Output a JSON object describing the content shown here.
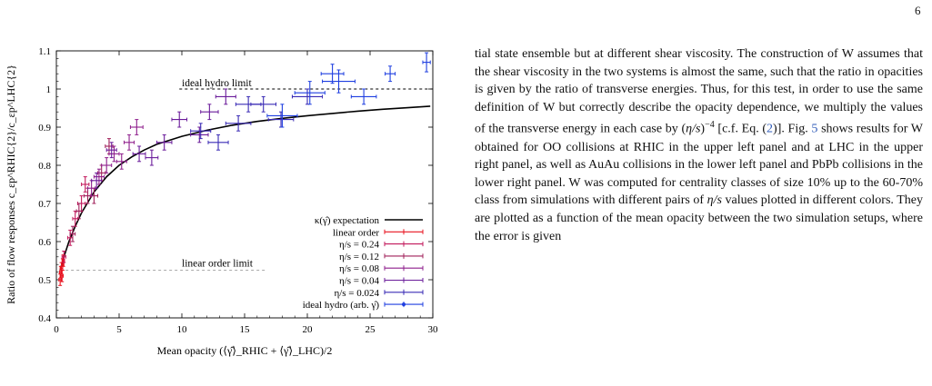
{
  "page_number": "6",
  "body_text": "tial state ensemble but at different shear viscosity. The construction of W assumes that the shear viscosity in the two systems is almost the same, such that the ratio in opacities is given by the ratio of transverse energies. Thus, for this test, in order to use the same definition of W but correctly describe the opacity dependence, we multiply the values of the transverse energy in each case by (η/s)^−4 [c.f. Eq. (2)]. Fig. 5 shows results for W obtained for OO collisions at RHIC in the upper left panel and at LHC in the upper right panel, as well as AuAu collisions in the lower left panel and PbPb collisions in the lower right panel. W was computed for centrality classes of size 10% up to the 60-70% class from simulations with different pairs of η/s values plotted in different colors. They are plotted as a function of the mean opacity between the two simulation setups, where the error is given",
  "colors": {
    "link": "#2f5bb8"
  },
  "chart_data": {
    "type": "scatter",
    "xlabel": "Mean opacity (⟨γ̂⟩_RHIC + ⟨γ̂⟩_LHC)/2",
    "ylabel": "Ratio of flow responses c_εp^RHIC{2}/c_εp^LHC{2}",
    "xlim": [
      0,
      30
    ],
    "ylim": [
      0.4,
      1.1
    ],
    "x_ticks": [
      "0",
      "5",
      "10",
      "15",
      "20",
      "25",
      "30"
    ],
    "y_ticks": [
      "0.4",
      "0.5",
      "0.6",
      "0.7",
      "0.8",
      "0.9",
      "1",
      "1.1"
    ],
    "annotations": {
      "ideal_hydro_limit": {
        "text": "ideal hydro limit",
        "y": 1.0
      },
      "linear_order_limit": {
        "text": "linear order limit",
        "y": 0.525
      }
    },
    "legend_position": "bottom-right",
    "curve": {
      "name": "κ(γ̂) expectation",
      "color": "#000000",
      "points": [
        [
          0.3,
          0.525
        ],
        [
          0.6,
          0.56
        ],
        [
          1,
          0.6
        ],
        [
          1.5,
          0.64
        ],
        [
          2,
          0.675
        ],
        [
          3,
          0.73
        ],
        [
          4,
          0.77
        ],
        [
          5,
          0.8
        ],
        [
          6,
          0.822
        ],
        [
          7,
          0.84
        ],
        [
          8,
          0.855
        ],
        [
          10,
          0.876
        ],
        [
          12,
          0.892
        ],
        [
          14,
          0.905
        ],
        [
          16,
          0.915
        ],
        [
          18,
          0.923
        ],
        [
          20,
          0.93
        ],
        [
          22,
          0.936
        ],
        [
          24,
          0.942
        ],
        [
          26,
          0.947
        ],
        [
          28,
          0.951
        ],
        [
          29.8,
          0.955
        ]
      ]
    },
    "series": [
      {
        "name": "linear order",
        "color": "#e8121f",
        "points": [
          [
            0.3,
            0.5,
            0.1,
            0.015
          ],
          [
            0.35,
            0.52,
            0.1,
            0.015
          ],
          [
            0.4,
            0.53,
            0.1,
            0.015
          ],
          [
            0.45,
            0.51,
            0.1,
            0.015
          ],
          [
            0.5,
            0.54,
            0.1,
            0.015
          ],
          [
            0.55,
            0.55,
            0.1,
            0.015
          ]
        ]
      },
      {
        "name": "η/s = 0.24",
        "color": "#c2185b",
        "points": [
          [
            0.6,
            0.56,
            0.15,
            0.015
          ],
          [
            1.1,
            0.61,
            0.2,
            0.02
          ],
          [
            1.5,
            0.66,
            0.2,
            0.02
          ],
          [
            2.0,
            0.7,
            0.3,
            0.02
          ],
          [
            2.3,
            0.75,
            0.3,
            0.02
          ]
        ]
      },
      {
        "name": "η/s = 0.12",
        "color": "#a0205a",
        "points": [
          [
            1.3,
            0.62,
            0.2,
            0.02
          ],
          [
            1.8,
            0.68,
            0.2,
            0.02
          ],
          [
            2.5,
            0.72,
            0.3,
            0.02
          ],
          [
            3.0,
            0.72,
            0.3,
            0.02
          ],
          [
            3.6,
            0.78,
            0.3,
            0.02
          ],
          [
            4.2,
            0.85,
            0.3,
            0.02
          ]
        ]
      },
      {
        "name": "η/s = 0.08",
        "color": "#8e1e8c",
        "points": [
          [
            2.8,
            0.74,
            0.3,
            0.02
          ],
          [
            3.4,
            0.77,
            0.4,
            0.02
          ],
          [
            4.0,
            0.8,
            0.4,
            0.02
          ],
          [
            4.6,
            0.83,
            0.4,
            0.02
          ],
          [
            5.2,
            0.81,
            0.4,
            0.02
          ],
          [
            5.8,
            0.86,
            0.4,
            0.02
          ],
          [
            6.4,
            0.9,
            0.5,
            0.02
          ]
        ]
      },
      {
        "name": "η/s = 0.04",
        "color": "#6a1b9a",
        "points": [
          [
            3.2,
            0.76,
            0.4,
            0.02
          ],
          [
            4.4,
            0.84,
            0.4,
            0.02
          ],
          [
            6.6,
            0.83,
            0.5,
            0.02
          ],
          [
            7.6,
            0.82,
            0.5,
            0.02
          ],
          [
            8.6,
            0.86,
            0.6,
            0.02
          ],
          [
            9.8,
            0.92,
            0.6,
            0.02
          ],
          [
            11.4,
            0.88,
            0.7,
            0.02
          ],
          [
            12.2,
            0.94,
            0.7,
            0.02
          ],
          [
            13.5,
            0.98,
            0.8,
            0.02
          ]
        ]
      },
      {
        "name": "η/s = 0.024",
        "color": "#3a2bb5",
        "points": [
          [
            11.5,
            0.89,
            0.8,
            0.02
          ],
          [
            12.9,
            0.86,
            0.8,
            0.02
          ],
          [
            14.5,
            0.91,
            1.0,
            0.02
          ],
          [
            15.3,
            0.96,
            1.0,
            0.02
          ],
          [
            16.5,
            0.96,
            1.0,
            0.02
          ],
          [
            17.9,
            0.92,
            1.0,
            0.02
          ],
          [
            20.0,
            0.98,
            1.2,
            0.02
          ]
        ]
      },
      {
        "name": "ideal hydro (arb. γ̂)",
        "color": "#1f3fe0",
        "points": [
          [
            18.0,
            0.93,
            1.2,
            0.03
          ],
          [
            20.2,
            0.99,
            1.2,
            0.03
          ],
          [
            22.5,
            1.02,
            1.3,
            0.03
          ],
          [
            24.5,
            0.98,
            1.0,
            0.02
          ],
          [
            26.6,
            1.04,
            0.4,
            0.02
          ],
          [
            29.5,
            1.07,
            0.3,
            0.025
          ],
          [
            22.0,
            1.04,
            0.9,
            0.025
          ]
        ]
      }
    ]
  }
}
